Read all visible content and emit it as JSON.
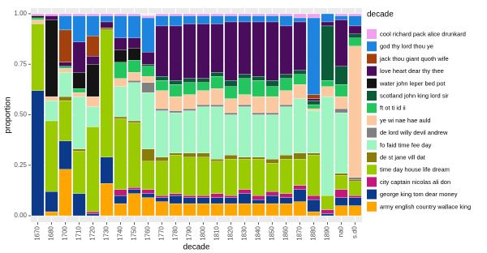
{
  "chart_data": {
    "type": "stacked_bar",
    "x_label": "decade",
    "y_label": "proportion",
    "legend_title": "decade",
    "legend": "right",
    "grid": true,
    "categories": [
      "1670",
      "1680",
      "1700",
      "1710",
      "1720",
      "1730",
      "1740",
      "1750",
      "1760",
      "1770",
      "1780",
      "1790",
      "1800",
      "1810",
      "1820",
      "1830",
      "1840",
      "1850",
      "1860",
      "1870",
      "1880",
      "1890",
      "na0",
      "s.d0"
    ],
    "ylim": [
      -0.032,
      1.028
    ],
    "yticks": [
      {
        "value": 0,
        "label": "0.00"
      },
      {
        "value": 0.25,
        "label": "0.25"
      },
      {
        "value": 0.5,
        "label": "0.50"
      },
      {
        "value": 0.75,
        "label": "0.75"
      },
      {
        "value": 1,
        "label": "1.00"
      }
    ],
    "series": [
      {
        "name": "cool richard pack alice drunkard",
        "color": "#f2a0f0",
        "values": [
          0.01,
          0.01,
          0.01,
          0.01,
          0.01,
          0.01,
          0.01,
          0.01,
          0.01,
          0.01,
          0.01,
          0.01,
          0.01,
          0.01,
          0.01,
          0.01,
          0.01,
          0.01,
          0.01,
          0.02,
          0.02,
          0,
          0.01,
          0.01
        ]
      },
      {
        "name": "god thy lord thou ye",
        "color": "#1d84e0",
        "values": [
          0,
          0,
          0.07,
          0.13,
          0.1,
          0.03,
          0.11,
          0.11,
          0.17,
          0.05,
          0.05,
          0.04,
          0.04,
          0.04,
          0.03,
          0.03,
          0.03,
          0.03,
          0.05,
          0.02,
          0.38,
          0.04,
          0.02,
          0.05
        ]
      },
      {
        "name": "jack thou giant quoth wife",
        "color": "#a3410e",
        "values": [
          0,
          0,
          0.16,
          0,
          0.1,
          0,
          0,
          0,
          0,
          0,
          0,
          0,
          0,
          0,
          0,
          0,
          0,
          0,
          0,
          0,
          0.02,
          0,
          0,
          0
        ]
      },
      {
        "name": "love heart dear thy thee",
        "color": "#4a0d5e",
        "values": [
          0,
          0.02,
          0.02,
          0.15,
          0.04,
          0.03,
          0.06,
          0.05,
          0.06,
          0.25,
          0.27,
          0.27,
          0.27,
          0.24,
          0.29,
          0.26,
          0.27,
          0.29,
          0.24,
          0.24,
          0.01,
          0.02,
          0.23,
          0.04
        ]
      },
      {
        "name": "water john leper bed pot",
        "color": "#141414",
        "values": [
          0.01,
          0.38,
          0,
          0.08,
          0.16,
          0,
          0.06,
          0.06,
          0,
          0,
          0,
          0,
          0,
          0,
          0,
          0,
          0,
          0,
          0,
          0,
          0,
          0,
          0,
          0
        ]
      },
      {
        "name": "scotland john king lord sir",
        "color": "#0a5c38",
        "values": [
          0,
          0,
          0,
          0,
          0,
          0,
          0,
          0,
          0.01,
          0.02,
          0.02,
          0.02,
          0.02,
          0.02,
          0.03,
          0.02,
          0.02,
          0.03,
          0.02,
          0.02,
          0.02,
          0.27,
          0.09,
          0.02
        ]
      },
      {
        "name": "ft ot ti id ii",
        "color": "#22c55e",
        "values": [
          0.01,
          0,
          0.01,
          0.02,
          0,
          0,
          0.08,
          0.06,
          0.05,
          0.05,
          0.06,
          0.06,
          0.04,
          0.06,
          0.06,
          0.08,
          0.08,
          0.05,
          0.06,
          0.05,
          0.02,
          0.03,
          0.06,
          0.04
        ]
      },
      {
        "name": "ye wi nae hae auld",
        "color": "#fbc8a0",
        "values": [
          0.02,
          0.02,
          0.02,
          0.02,
          0.05,
          0,
          0.04,
          0.04,
          0.03,
          0.09,
          0.07,
          0.07,
          0.07,
          0.08,
          0.07,
          0.05,
          0.08,
          0.08,
          0.07,
          0.07,
          0.01,
          0.05,
          0.06,
          0.65
        ]
      },
      {
        "name": "de lord willy devil andrew",
        "color": "#808080",
        "values": [
          0,
          0,
          0,
          0,
          0,
          0,
          0,
          0.01,
          0.05,
          0.01,
          0.01,
          0.01,
          0.01,
          0.01,
          0.01,
          0.01,
          0.01,
          0.01,
          0.01,
          0,
          0,
          0,
          0.02,
          0.01
        ]
      },
      {
        "name": "fo faid time fee day",
        "color": "#9ef5c2",
        "values": [
          0,
          0.1,
          0.12,
          0.26,
          0.1,
          0,
          0.15,
          0.19,
          0.28,
          0.23,
          0.2,
          0.21,
          0.23,
          0.26,
          0.2,
          0.25,
          0.21,
          0.22,
          0.24,
          0.27,
          0.21,
          0.49,
          0.3,
          0
        ]
      },
      {
        "name": "de st jane vill dat",
        "color": "#8a7c0a",
        "values": [
          0,
          0,
          0.02,
          0.01,
          0,
          0.01,
          0.01,
          0.01,
          0.06,
          0.02,
          0.01,
          0.02,
          0.02,
          0.01,
          0.02,
          0.01,
          0.01,
          0.02,
          0.02,
          0.03,
          0.01,
          0,
          0.01,
          0.01
        ]
      },
      {
        "name": "time day house life dream",
        "color": "#9acb00",
        "values": [
          0.33,
          0.35,
          0.2,
          0.21,
          0.42,
          0.63,
          0.35,
          0.32,
          0.14,
          0.17,
          0.19,
          0.19,
          0.19,
          0.16,
          0.18,
          0.15,
          0.18,
          0.14,
          0.17,
          0.13,
          0.2,
          0.07,
          0.07,
          0.07
        ]
      },
      {
        "name": "city captain nicolas ali don",
        "color": "#c2187a",
        "values": [
          0,
          0,
          0,
          0,
          0.01,
          0,
          0.03,
          0.01,
          0.02,
          0.01,
          0.01,
          0.01,
          0.01,
          0.02,
          0.01,
          0.02,
          0.02,
          0.02,
          0.02,
          0.02,
          0.02,
          0.02,
          0.04,
          0.01
        ]
      },
      {
        "name": "george king tom dear money",
        "color": "#0c3a8a",
        "values": [
          0.62,
          0.1,
          0.14,
          0.11,
          0.01,
          0.13,
          0.04,
          0.02,
          0.02,
          0.02,
          0.04,
          0.03,
          0.03,
          0.03,
          0.03,
          0.05,
          0.02,
          0.04,
          0.03,
          0.06,
          0.06,
          0.01,
          0.04,
          0.04
        ]
      },
      {
        "name": "army english country wallace king",
        "color": "#ffa500",
        "values": [
          0,
          0.02,
          0.23,
          0,
          0,
          0.16,
          0.06,
          0.11,
          0.09,
          0.07,
          0.06,
          0.06,
          0.06,
          0.06,
          0.06,
          0.06,
          0.06,
          0.06,
          0.06,
          0.07,
          0.02,
          0,
          0.05,
          0.05
        ]
      }
    ]
  }
}
